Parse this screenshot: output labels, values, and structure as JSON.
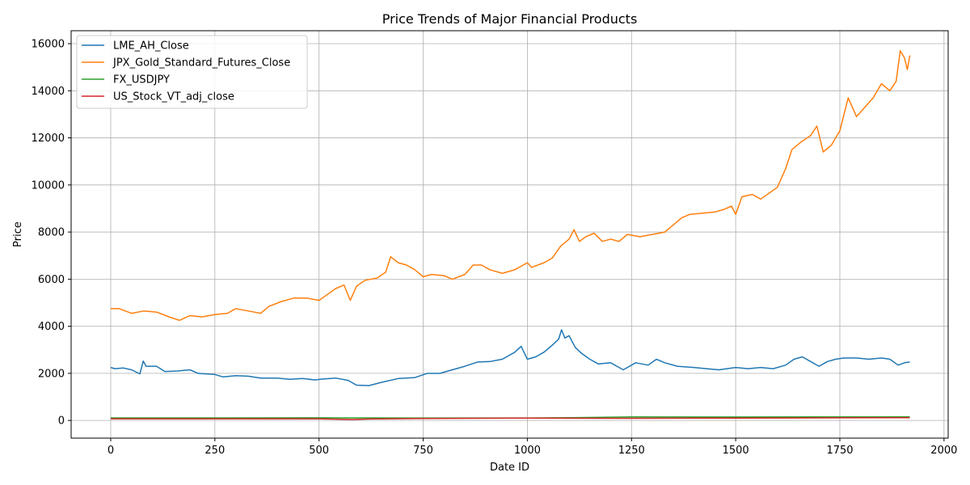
{
  "chart_data": {
    "type": "line",
    "title": "Price Trends of Major Financial Products",
    "xlabel": "Date ID",
    "ylabel": "Price",
    "xlim": [
      -95,
      2010
    ],
    "ylim": [
      -750,
      16550
    ],
    "xticks": [
      0,
      250,
      500,
      750,
      1000,
      1250,
      1500,
      1750,
      2000
    ],
    "yticks": [
      0,
      2000,
      4000,
      6000,
      8000,
      10000,
      12000,
      14000,
      16000
    ],
    "grid": true,
    "legend_position": "top-left",
    "series": [
      {
        "name": "LME_AH_Close",
        "color": "#1f77b4",
        "points": [
          [
            0,
            2250
          ],
          [
            10,
            2200
          ],
          [
            30,
            2230
          ],
          [
            50,
            2150
          ],
          [
            70,
            1980
          ],
          [
            78,
            2520
          ],
          [
            85,
            2300
          ],
          [
            110,
            2300
          ],
          [
            130,
            2080
          ],
          [
            160,
            2100
          ],
          [
            190,
            2150
          ],
          [
            210,
            2000
          ],
          [
            250,
            1950
          ],
          [
            270,
            1850
          ],
          [
            300,
            1900
          ],
          [
            330,
            1880
          ],
          [
            360,
            1800
          ],
          [
            400,
            1800
          ],
          [
            430,
            1750
          ],
          [
            460,
            1780
          ],
          [
            490,
            1720
          ],
          [
            510,
            1760
          ],
          [
            540,
            1800
          ],
          [
            570,
            1700
          ],
          [
            590,
            1500
          ],
          [
            620,
            1480
          ],
          [
            650,
            1620
          ],
          [
            690,
            1780
          ],
          [
            730,
            1820
          ],
          [
            760,
            2000
          ],
          [
            790,
            2000
          ],
          [
            820,
            2150
          ],
          [
            850,
            2300
          ],
          [
            880,
            2480
          ],
          [
            910,
            2500
          ],
          [
            940,
            2600
          ],
          [
            970,
            2900
          ],
          [
            985,
            3150
          ],
          [
            1000,
            2600
          ],
          [
            1020,
            2700
          ],
          [
            1040,
            2900
          ],
          [
            1060,
            3200
          ],
          [
            1075,
            3450
          ],
          [
            1082,
            3850
          ],
          [
            1090,
            3500
          ],
          [
            1100,
            3600
          ],
          [
            1115,
            3100
          ],
          [
            1130,
            2850
          ],
          [
            1150,
            2600
          ],
          [
            1170,
            2400
          ],
          [
            1200,
            2450
          ],
          [
            1230,
            2150
          ],
          [
            1260,
            2450
          ],
          [
            1290,
            2350
          ],
          [
            1310,
            2600
          ],
          [
            1330,
            2450
          ],
          [
            1360,
            2300
          ],
          [
            1400,
            2250
          ],
          [
            1430,
            2200
          ],
          [
            1460,
            2150
          ],
          [
            1500,
            2250
          ],
          [
            1530,
            2200
          ],
          [
            1560,
            2250
          ],
          [
            1590,
            2200
          ],
          [
            1620,
            2350
          ],
          [
            1640,
            2600
          ],
          [
            1660,
            2700
          ],
          [
            1680,
            2500
          ],
          [
            1700,
            2300
          ],
          [
            1720,
            2500
          ],
          [
            1740,
            2600
          ],
          [
            1760,
            2650
          ],
          [
            1790,
            2650
          ],
          [
            1820,
            2600
          ],
          [
            1850,
            2650
          ],
          [
            1870,
            2600
          ],
          [
            1890,
            2350
          ],
          [
            1905,
            2450
          ],
          [
            1918,
            2480
          ]
        ]
      },
      {
        "name": "JPX_Gold_Standard_Futures_Close",
        "color": "#ff7f0e",
        "points": [
          [
            0,
            4750
          ],
          [
            20,
            4750
          ],
          [
            50,
            4550
          ],
          [
            80,
            4650
          ],
          [
            110,
            4600
          ],
          [
            140,
            4400
          ],
          [
            165,
            4250
          ],
          [
            190,
            4450
          ],
          [
            220,
            4400
          ],
          [
            250,
            4500
          ],
          [
            280,
            4550
          ],
          [
            300,
            4750
          ],
          [
            330,
            4650
          ],
          [
            360,
            4550
          ],
          [
            380,
            4850
          ],
          [
            410,
            5050
          ],
          [
            440,
            5200
          ],
          [
            470,
            5200
          ],
          [
            500,
            5100
          ],
          [
            520,
            5350
          ],
          [
            540,
            5600
          ],
          [
            560,
            5750
          ],
          [
            575,
            5100
          ],
          [
            590,
            5700
          ],
          [
            610,
            5950
          ],
          [
            640,
            6050
          ],
          [
            660,
            6300
          ],
          [
            672,
            6950
          ],
          [
            690,
            6700
          ],
          [
            710,
            6600
          ],
          [
            730,
            6400
          ],
          [
            750,
            6100
          ],
          [
            770,
            6200
          ],
          [
            800,
            6150
          ],
          [
            820,
            6000
          ],
          [
            850,
            6200
          ],
          [
            870,
            6600
          ],
          [
            890,
            6600
          ],
          [
            910,
            6400
          ],
          [
            940,
            6250
          ],
          [
            970,
            6400
          ],
          [
            1000,
            6700
          ],
          [
            1010,
            6500
          ],
          [
            1040,
            6700
          ],
          [
            1060,
            6900
          ],
          [
            1080,
            7400
          ],
          [
            1100,
            7700
          ],
          [
            1112,
            8100
          ],
          [
            1125,
            7600
          ],
          [
            1140,
            7800
          ],
          [
            1160,
            7950
          ],
          [
            1180,
            7600
          ],
          [
            1200,
            7700
          ],
          [
            1220,
            7600
          ],
          [
            1240,
            7900
          ],
          [
            1270,
            7800
          ],
          [
            1300,
            7900
          ],
          [
            1330,
            8000
          ],
          [
            1350,
            8300
          ],
          [
            1370,
            8600
          ],
          [
            1390,
            8750
          ],
          [
            1420,
            8800
          ],
          [
            1450,
            8850
          ],
          [
            1470,
            8950
          ],
          [
            1490,
            9100
          ],
          [
            1500,
            8750
          ],
          [
            1515,
            9500
          ],
          [
            1540,
            9600
          ],
          [
            1560,
            9400
          ],
          [
            1580,
            9650
          ],
          [
            1600,
            9900
          ],
          [
            1620,
            10700
          ],
          [
            1635,
            11500
          ],
          [
            1655,
            11800
          ],
          [
            1680,
            12100
          ],
          [
            1695,
            12500
          ],
          [
            1710,
            11400
          ],
          [
            1730,
            11700
          ],
          [
            1750,
            12300
          ],
          [
            1770,
            13700
          ],
          [
            1790,
            12900
          ],
          [
            1810,
            13300
          ],
          [
            1830,
            13700
          ],
          [
            1850,
            14300
          ],
          [
            1870,
            14000
          ],
          [
            1885,
            14400
          ],
          [
            1895,
            15700
          ],
          [
            1905,
            15400
          ],
          [
            1912,
            14900
          ],
          [
            1918,
            15500
          ]
        ]
      },
      {
        "name": "FX_USDJPY",
        "color": "#2ca02c",
        "points": [
          [
            0,
            108
          ],
          [
            250,
            108
          ],
          [
            500,
            110
          ],
          [
            750,
            106
          ],
          [
            1000,
            104
          ],
          [
            1100,
            115
          ],
          [
            1250,
            150
          ],
          [
            1500,
            145
          ],
          [
            1700,
            150
          ],
          [
            1800,
            150
          ],
          [
            1918,
            155
          ]
        ]
      },
      {
        "name": "US_Stock_VT_adj_close",
        "color": "#d62728",
        "points": [
          [
            0,
            70
          ],
          [
            250,
            72
          ],
          [
            500,
            70
          ],
          [
            580,
            40
          ],
          [
            620,
            60
          ],
          [
            750,
            85
          ],
          [
            1000,
            100
          ],
          [
            1100,
            95
          ],
          [
            1250,
            90
          ],
          [
            1500,
            100
          ],
          [
            1750,
            110
          ],
          [
            1918,
            120
          ]
        ]
      }
    ]
  }
}
